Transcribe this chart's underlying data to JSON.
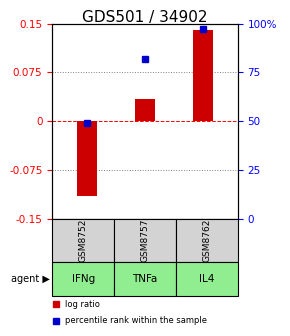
{
  "title": "GDS501 / 34902",
  "samples": [
    "GSM8752",
    "GSM8757",
    "GSM8762"
  ],
  "agents": [
    "IFNg",
    "TNFa",
    "IL4"
  ],
  "log_ratios": [
    -0.115,
    0.035,
    0.14
  ],
  "percentile_ranks": [
    49.0,
    82.0,
    97.0
  ],
  "ylim_left": [
    -0.15,
    0.15
  ],
  "yticks_left": [
    -0.15,
    -0.075,
    0,
    0.075,
    0.15
  ],
  "ytick_labels_left": [
    "-0.15",
    "-0.075",
    "0",
    "0.075",
    "0.15"
  ],
  "ylim_right": [
    0,
    100
  ],
  "yticks_right": [
    0,
    25,
    50,
    75,
    100
  ],
  "ytick_labels_right": [
    "0",
    "25",
    "50",
    "75",
    "100%"
  ],
  "bar_color": "#cc0000",
  "square_color": "#0000cc",
  "agent_bg_color": "#90ee90",
  "gsm_bg_color": "#d3d3d3",
  "legend_bar_label": "log ratio",
  "legend_square_label": "percentile rank within the sample",
  "agent_label": "agent",
  "title_fontsize": 11,
  "tick_fontsize": 7.5,
  "label_fontsize": 8
}
